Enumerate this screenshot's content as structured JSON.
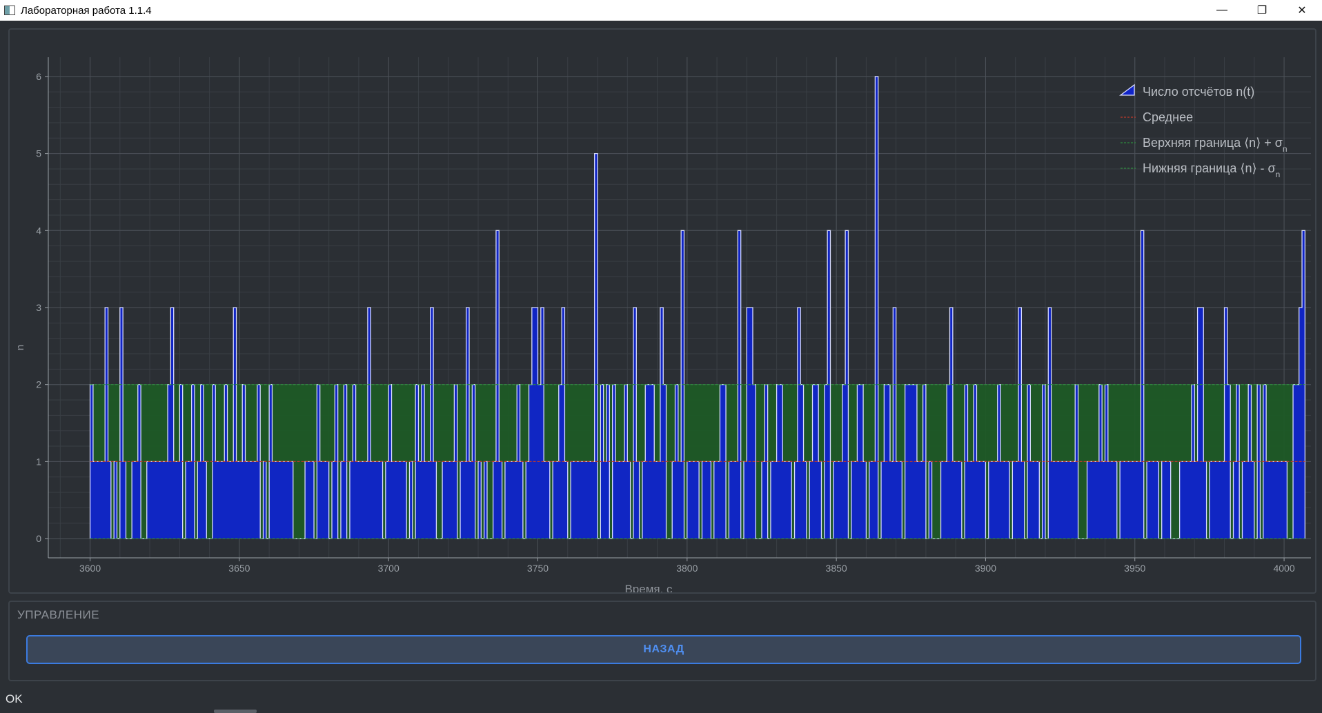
{
  "window": {
    "title": "Лабораторная работа 1.1.4",
    "minimize_glyph": "—",
    "maximize_glyph": "❐",
    "close_glyph": "✕"
  },
  "controls": {
    "group_title": "УПРАВЛЕНИЕ",
    "back_label": "НАЗАД"
  },
  "status": {
    "text": "OK"
  },
  "colors": {
    "background": "#2b2f34",
    "counts_fill": "#1024c8",
    "counts_line": "#d8dcff",
    "band_fill": "#1e5a26",
    "mean_line": "#c0392b",
    "bound_line": "#2e8b3e",
    "accent": "#3b7be0"
  },
  "chart_data": {
    "type": "area",
    "xlabel": "Время, с",
    "ylabel": "n",
    "xlim": [
      3586,
      4009
    ],
    "ylim": [
      -0.25,
      6.25
    ],
    "xticks": [
      3600,
      3650,
      3700,
      3750,
      3800,
      3850,
      3900,
      3950,
      4000
    ],
    "yticks": [
      0,
      1,
      2,
      3,
      4,
      5,
      6
    ],
    "grid": true,
    "legend_position": "top-right",
    "legend": [
      "Число отсчётов n(t)",
      "Среднее",
      "Верхняя граница ⟨n⟩ + σ",
      "Нижняя граница ⟨n⟩ - σ"
    ],
    "legend_subscript": "n",
    "mean": 1.0,
    "upper_bound": 2.0,
    "lower_bound": 0.0,
    "series": [
      {
        "name": "Число отсчётов n(t)",
        "step": true,
        "x_start": 3600,
        "x_step": 1,
        "values": [
          2,
          1,
          1,
          1,
          1,
          3,
          1,
          0,
          1,
          0,
          3,
          1,
          0,
          0,
          1,
          1,
          2,
          0,
          0,
          1,
          1,
          1,
          1,
          1,
          1,
          1,
          2,
          3,
          1,
          1,
          2,
          0,
          1,
          1,
          2,
          0,
          1,
          2,
          1,
          0,
          0,
          2,
          1,
          1,
          1,
          2,
          1,
          1,
          3,
          1,
          1,
          2,
          1,
          1,
          1,
          1,
          2,
          0,
          1,
          0,
          2,
          1,
          1,
          1,
          1,
          1,
          1,
          1,
          0,
          0,
          0,
          0,
          1,
          1,
          1,
          0,
          2,
          1,
          1,
          1,
          0,
          1,
          2,
          0,
          1,
          2,
          0,
          1,
          2,
          1,
          1,
          1,
          1,
          3,
          1,
          1,
          1,
          1,
          0,
          1,
          2,
          1,
          1,
          1,
          1,
          1,
          0,
          1,
          0,
          2,
          1,
          2,
          1,
          1,
          3,
          1,
          0,
          0,
          1,
          1,
          1,
          1,
          2,
          0,
          1,
          1,
          3,
          1,
          2,
          0,
          1,
          0,
          1,
          0,
          0,
          1,
          4,
          1,
          0,
          1,
          1,
          1,
          1,
          2,
          1,
          0,
          1,
          2,
          3,
          3,
          2,
          3,
          1,
          1,
          0,
          1,
          1,
          2,
          3,
          1,
          0,
          1,
          1,
          1,
          1,
          1,
          1,
          1,
          1,
          5,
          0,
          2,
          1,
          2,
          0,
          2,
          1,
          1,
          1,
          2,
          1,
          0,
          3,
          1,
          0,
          1,
          2,
          2,
          2,
          1,
          1,
          3,
          2,
          0,
          0,
          1,
          2,
          1,
          4,
          0,
          1,
          1,
          1,
          1,
          0,
          1,
          1,
          1,
          0,
          1,
          1,
          2,
          2,
          0,
          1,
          1,
          1,
          4,
          0,
          1,
          3,
          3,
          2,
          0,
          0,
          1,
          2,
          0,
          1,
          1,
          2,
          2,
          1,
          1,
          1,
          0,
          1,
          3,
          2,
          1,
          0,
          1,
          2,
          2,
          1,
          0,
          2,
          4,
          0,
          1,
          1,
          1,
          2,
          4,
          0,
          1,
          1,
          2,
          2,
          1,
          0,
          1,
          1,
          6,
          0,
          1,
          2,
          2,
          1,
          3,
          1,
          1,
          0,
          2,
          2,
          2,
          2,
          1,
          1,
          2,
          0,
          1,
          0,
          0,
          0,
          1,
          1,
          2,
          3,
          1,
          1,
          1,
          0,
          2,
          1,
          1,
          2,
          1,
          1,
          1,
          0,
          1,
          1,
          1,
          2,
          1,
          1,
          1,
          0,
          1,
          1,
          3,
          1,
          0,
          2,
          1,
          1,
          1,
          0,
          2,
          0,
          3,
          1,
          1,
          1,
          1,
          1,
          1,
          1,
          1,
          2,
          0,
          0,
          0,
          1,
          1,
          1,
          1,
          2,
          1,
          2,
          1,
          1,
          1,
          0,
          1,
          1,
          1,
          1,
          1,
          1,
          1,
          4,
          0,
          1,
          1,
          1,
          1,
          0,
          1,
          1,
          1,
          0,
          0,
          0,
          1,
          1,
          1,
          1,
          2,
          1,
          3,
          3,
          1,
          0,
          1,
          1,
          1,
          1,
          1,
          3,
          2,
          0,
          1,
          2,
          0,
          1,
          1,
          2,
          1,
          0,
          2,
          0,
          2,
          1,
          1,
          1,
          1,
          1,
          1,
          1,
          0,
          0,
          2,
          2,
          3,
          4
        ]
      }
    ]
  }
}
